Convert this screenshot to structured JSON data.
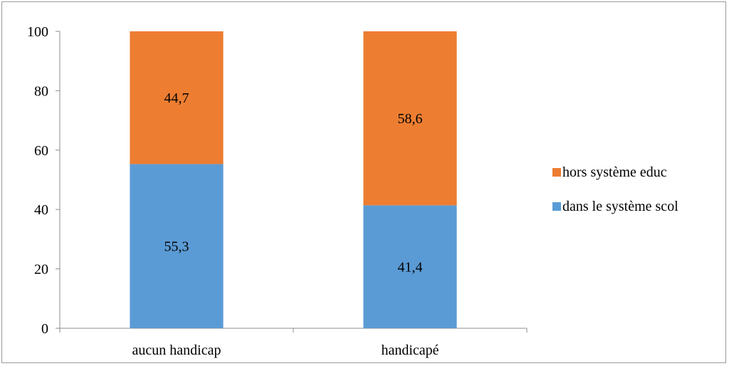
{
  "chart_data": {
    "type": "bar",
    "stacked": true,
    "categories": [
      "aucun handicap",
      "handicapé"
    ],
    "series": [
      {
        "name": "dans le système scol",
        "values": [
          55.3,
          41.4
        ],
        "labels": [
          "55,3",
          "41,4"
        ],
        "color": "#5b9bd5"
      },
      {
        "name": "hors système educ",
        "values": [
          44.7,
          58.6
        ],
        "labels": [
          "44,7",
          "58,6"
        ],
        "color": "#ed7d31"
      }
    ],
    "ylim": [
      0,
      100
    ],
    "yticks": [
      0,
      20,
      40,
      60,
      80,
      100
    ],
    "ytick_labels": [
      "0",
      "20",
      "40",
      "60",
      "80",
      "100"
    ],
    "grid": false,
    "legend_placement": "right",
    "legend_order": [
      "hors système educ",
      "dans le système scol"
    ]
  }
}
